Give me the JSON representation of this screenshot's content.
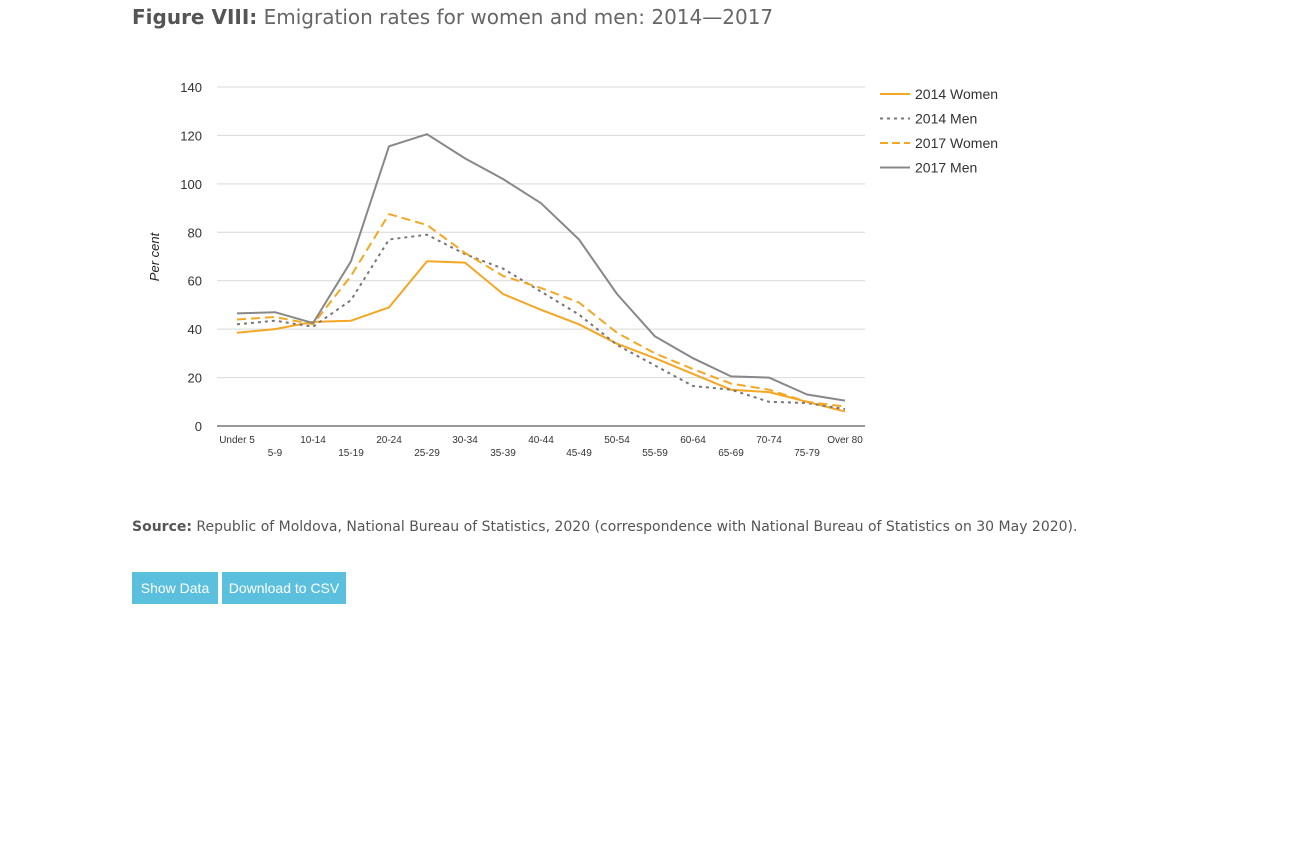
{
  "figure": {
    "label": "Figure VIII:",
    "title": "Emigration rates for women and men: 2014—2017"
  },
  "source": {
    "label": "Source:",
    "text": "Republic of Moldova, National Bureau of Statistics, 2020 (correspondence with National Bureau of Statistics on 30 May 2020)."
  },
  "buttons": {
    "show_data": "Show Data",
    "download_csv": "Download to CSV"
  },
  "chart_data": {
    "type": "line",
    "ylabel": "Per cent",
    "xlabel": "",
    "ylim": [
      0,
      140
    ],
    "yticks": [
      0,
      20,
      40,
      60,
      80,
      100,
      120,
      140
    ],
    "grid": true,
    "legend_position": "right",
    "categories": [
      "Under 5",
      "5-9",
      "10-14",
      "15-19",
      "20-24",
      "25-29",
      "30-34",
      "35-39",
      "40-44",
      "45-49",
      "50-54",
      "55-59",
      "60-64",
      "65-69",
      "70-74",
      "75-79",
      "Over 80"
    ],
    "series": [
      {
        "name": "2014 Women",
        "color": "#f5a623",
        "dash": "solid",
        "values": [
          38.5,
          40,
          43,
          43.5,
          49,
          68,
          67.5,
          54.5,
          48,
          42,
          34,
          28,
          21.5,
          15,
          14,
          10,
          6
        ]
      },
      {
        "name": "2014 Men",
        "color": "#777777",
        "dash": "dotted",
        "values": [
          42,
          43.5,
          41,
          52,
          77,
          79,
          71,
          65,
          55.5,
          46,
          33.5,
          25,
          16.5,
          15,
          10,
          9.5,
          7
        ]
      },
      {
        "name": "2017 Women",
        "color": "#f5a623",
        "dash": "dashed",
        "values": [
          44,
          45,
          42,
          62,
          87.5,
          83,
          71.5,
          62,
          57,
          51,
          38.5,
          30,
          23.5,
          17.5,
          15,
          10,
          8
        ]
      },
      {
        "name": "2017 Men",
        "color": "#888888",
        "dash": "solid",
        "values": [
          46.5,
          47,
          42.5,
          68,
          115.5,
          120.5,
          110.5,
          102,
          92,
          77,
          54.5,
          37,
          28,
          20.5,
          20,
          13,
          10.5
        ]
      }
    ]
  }
}
